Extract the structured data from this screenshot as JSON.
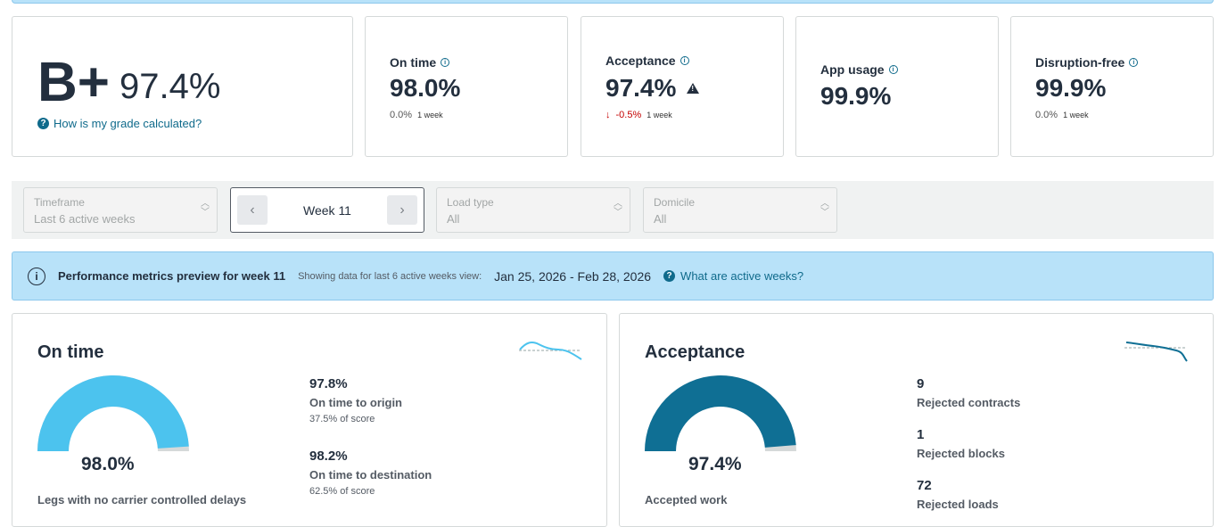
{
  "grade": {
    "letter": "B+",
    "percent": "97.4%",
    "link_text": "How is my grade calculated?"
  },
  "metrics": [
    {
      "label": "On time",
      "value": "98.0%",
      "change": "0.0%",
      "period": "1 week"
    },
    {
      "label": "Acceptance",
      "value": "97.4%",
      "change": "-0.5%",
      "period": "1 week",
      "warning": true
    },
    {
      "label": "App usage",
      "value": "99.9%"
    },
    {
      "label": "Disruption-free",
      "value": "99.9%",
      "change": "0.0%",
      "period": "1 week"
    }
  ],
  "filters": {
    "timeframe": {
      "label": "Timeframe",
      "value": "Last 6 active weeks"
    },
    "week": "Week 11",
    "load_type": {
      "label": "Load type",
      "value": "All"
    },
    "domicile": {
      "label": "Domicile",
      "value": "All"
    }
  },
  "banner": {
    "title": "Performance metrics preview for week 11",
    "showing": "Showing data for last 6 active weeks view:",
    "range": "Jan 25, 2026 - Feb 28, 2026",
    "link": "What are active weeks?"
  },
  "panels": {
    "on_time": {
      "title": "On time",
      "gauge_value": "98.0%",
      "gauge_fraction": 0.98,
      "caption": "Legs with no carrier controlled delays",
      "stats": [
        {
          "value": "97.8%",
          "label": "On time to origin",
          "sub": "37.5% of score"
        },
        {
          "value": "98.2%",
          "label": "On time to destination",
          "sub": "62.5% of score"
        }
      ]
    },
    "acceptance": {
      "title": "Acceptance",
      "gauge_value": "97.4%",
      "gauge_fraction": 0.974,
      "caption": "Accepted work",
      "stats": [
        {
          "value": "9",
          "label": "Rejected contracts"
        },
        {
          "value": "1",
          "label": "Rejected blocks"
        },
        {
          "value": "72",
          "label": "Rejected loads"
        }
      ]
    }
  },
  "colors": {
    "on_time_gauge": "#4cc3ee",
    "acceptance_gauge": "#0f6f94",
    "link": "#0f6a8b",
    "banner": "#b8e2f9"
  }
}
